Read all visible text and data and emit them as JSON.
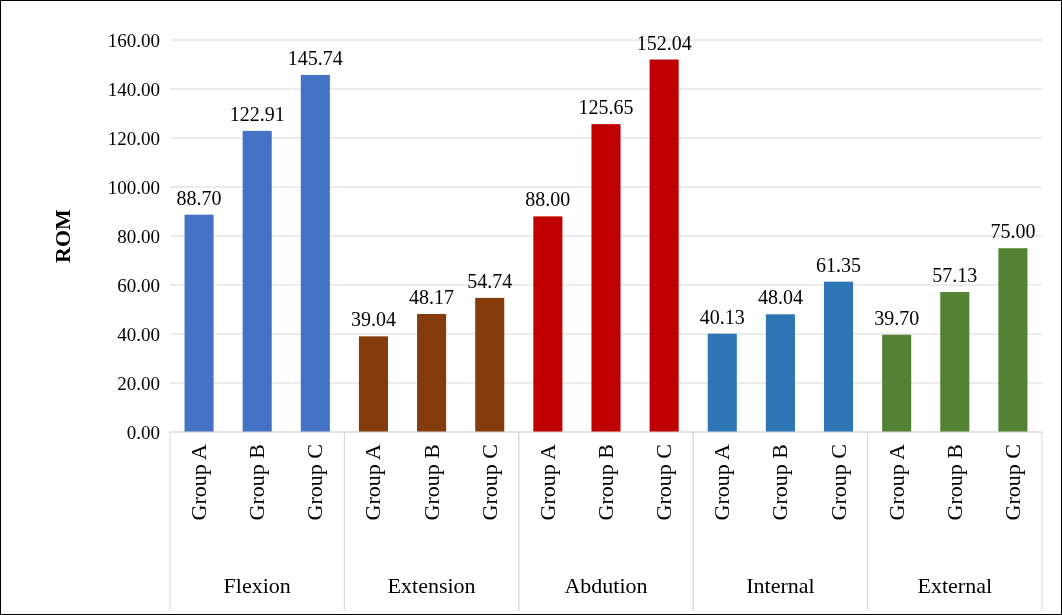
{
  "chart_data": {
    "type": "bar",
    "ylabel": "ROM",
    "categories": [
      "Group A",
      "Group B",
      "Group C",
      "Group A",
      "Group B",
      "Group C",
      "Group A",
      "Group B",
      "Group C",
      "Group A",
      "Group B",
      "Group C",
      "Group A",
      "Group B",
      "Group C"
    ],
    "series": [
      {
        "color": "#4472c4",
        "values": [
          88.7,
          122.91,
          145.74,
          null,
          null,
          null,
          null,
          null,
          null,
          null,
          null,
          null,
          null,
          null,
          null
        ],
        "value_labels": [
          "88.70",
          "122.91",
          "145.74",
          null,
          null,
          null,
          null,
          null,
          null,
          null,
          null,
          null,
          null,
          null,
          null
        ]
      },
      {
        "color": "#843c0c",
        "values": [
          null,
          null,
          null,
          39.04,
          48.17,
          54.74,
          null,
          null,
          null,
          null,
          null,
          null,
          null,
          null,
          null
        ],
        "value_labels": [
          null,
          null,
          null,
          "39.04",
          "48.17",
          "54.74",
          null,
          null,
          null,
          null,
          null,
          null,
          null,
          null,
          null
        ]
      },
      {
        "color": "#c00000",
        "values": [
          null,
          null,
          null,
          null,
          null,
          null,
          88.0,
          125.65,
          152.04,
          null,
          null,
          null,
          null,
          null,
          null
        ],
        "value_labels": [
          null,
          null,
          null,
          null,
          null,
          null,
          "88.00",
          "125.65",
          "152.04",
          null,
          null,
          null,
          null,
          null,
          null
        ]
      },
      {
        "color": "#2e75b6",
        "values": [
          null,
          null,
          null,
          null,
          null,
          null,
          null,
          null,
          null,
          40.13,
          48.04,
          61.35,
          null,
          null,
          null
        ],
        "value_labels": [
          null,
          null,
          null,
          null,
          null,
          null,
          null,
          null,
          null,
          "40.13",
          "48.04",
          "61.35",
          null,
          null,
          null
        ]
      },
      {
        "color": "#548235",
        "values": [
          null,
          null,
          null,
          null,
          null,
          null,
          null,
          null,
          null,
          null,
          null,
          null,
          39.7,
          57.13,
          75.0
        ],
        "value_labels": [
          null,
          null,
          null,
          null,
          null,
          null,
          null,
          null,
          null,
          null,
          null,
          null,
          "39.70",
          "57.13",
          "75.00"
        ]
      }
    ],
    "annotations": [
      "Flexion",
      "Extension",
      "Abdution",
      "Internal",
      "External"
    ],
    "ylim": [
      0,
      160
    ],
    "yticks": [
      {
        "value": 0,
        "label": "0.00"
      },
      {
        "value": 20,
        "label": "20.00"
      },
      {
        "value": 40,
        "label": "40.00"
      },
      {
        "value": 60,
        "label": "60.00"
      },
      {
        "value": 80,
        "label": "80.00"
      },
      {
        "value": 100,
        "label": "100.00"
      },
      {
        "value": 120,
        "label": "120.00"
      },
      {
        "value": 140,
        "label": "140.00"
      },
      {
        "value": 160,
        "label": "160.00"
      }
    ],
    "grid": "y"
  }
}
